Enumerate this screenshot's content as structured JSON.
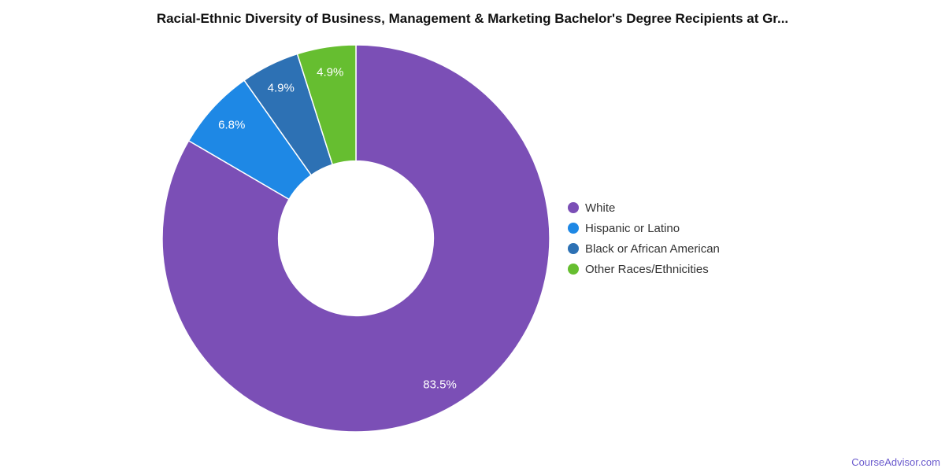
{
  "watermark": "CourseAdvisor.com",
  "chart_data": {
    "type": "pie",
    "subtype": "donut",
    "title": "Racial-Ethnic Diversity of Business, Management & Marketing Bachelor's Degree Recipients at Gr...",
    "labels": [
      "White",
      "Hispanic or Latino",
      "Black or African American",
      "Other Races/Ethnicities"
    ],
    "values": [
      83.5,
      6.8,
      4.9,
      4.9
    ],
    "value_labels": [
      "83.5%",
      "6.8%",
      "4.9%",
      "4.9%"
    ],
    "colors": [
      "#7B4FB6",
      "#1E88E5",
      "#2D71B4",
      "#66BE30"
    ],
    "slice_border_color": "#FFFFFF",
    "start_angle_deg": 0,
    "direction": "clockwise",
    "inner_radius_ratio": 0.4,
    "label_color": "#FFFFFF",
    "legend_position": "right",
    "grid": false
  }
}
